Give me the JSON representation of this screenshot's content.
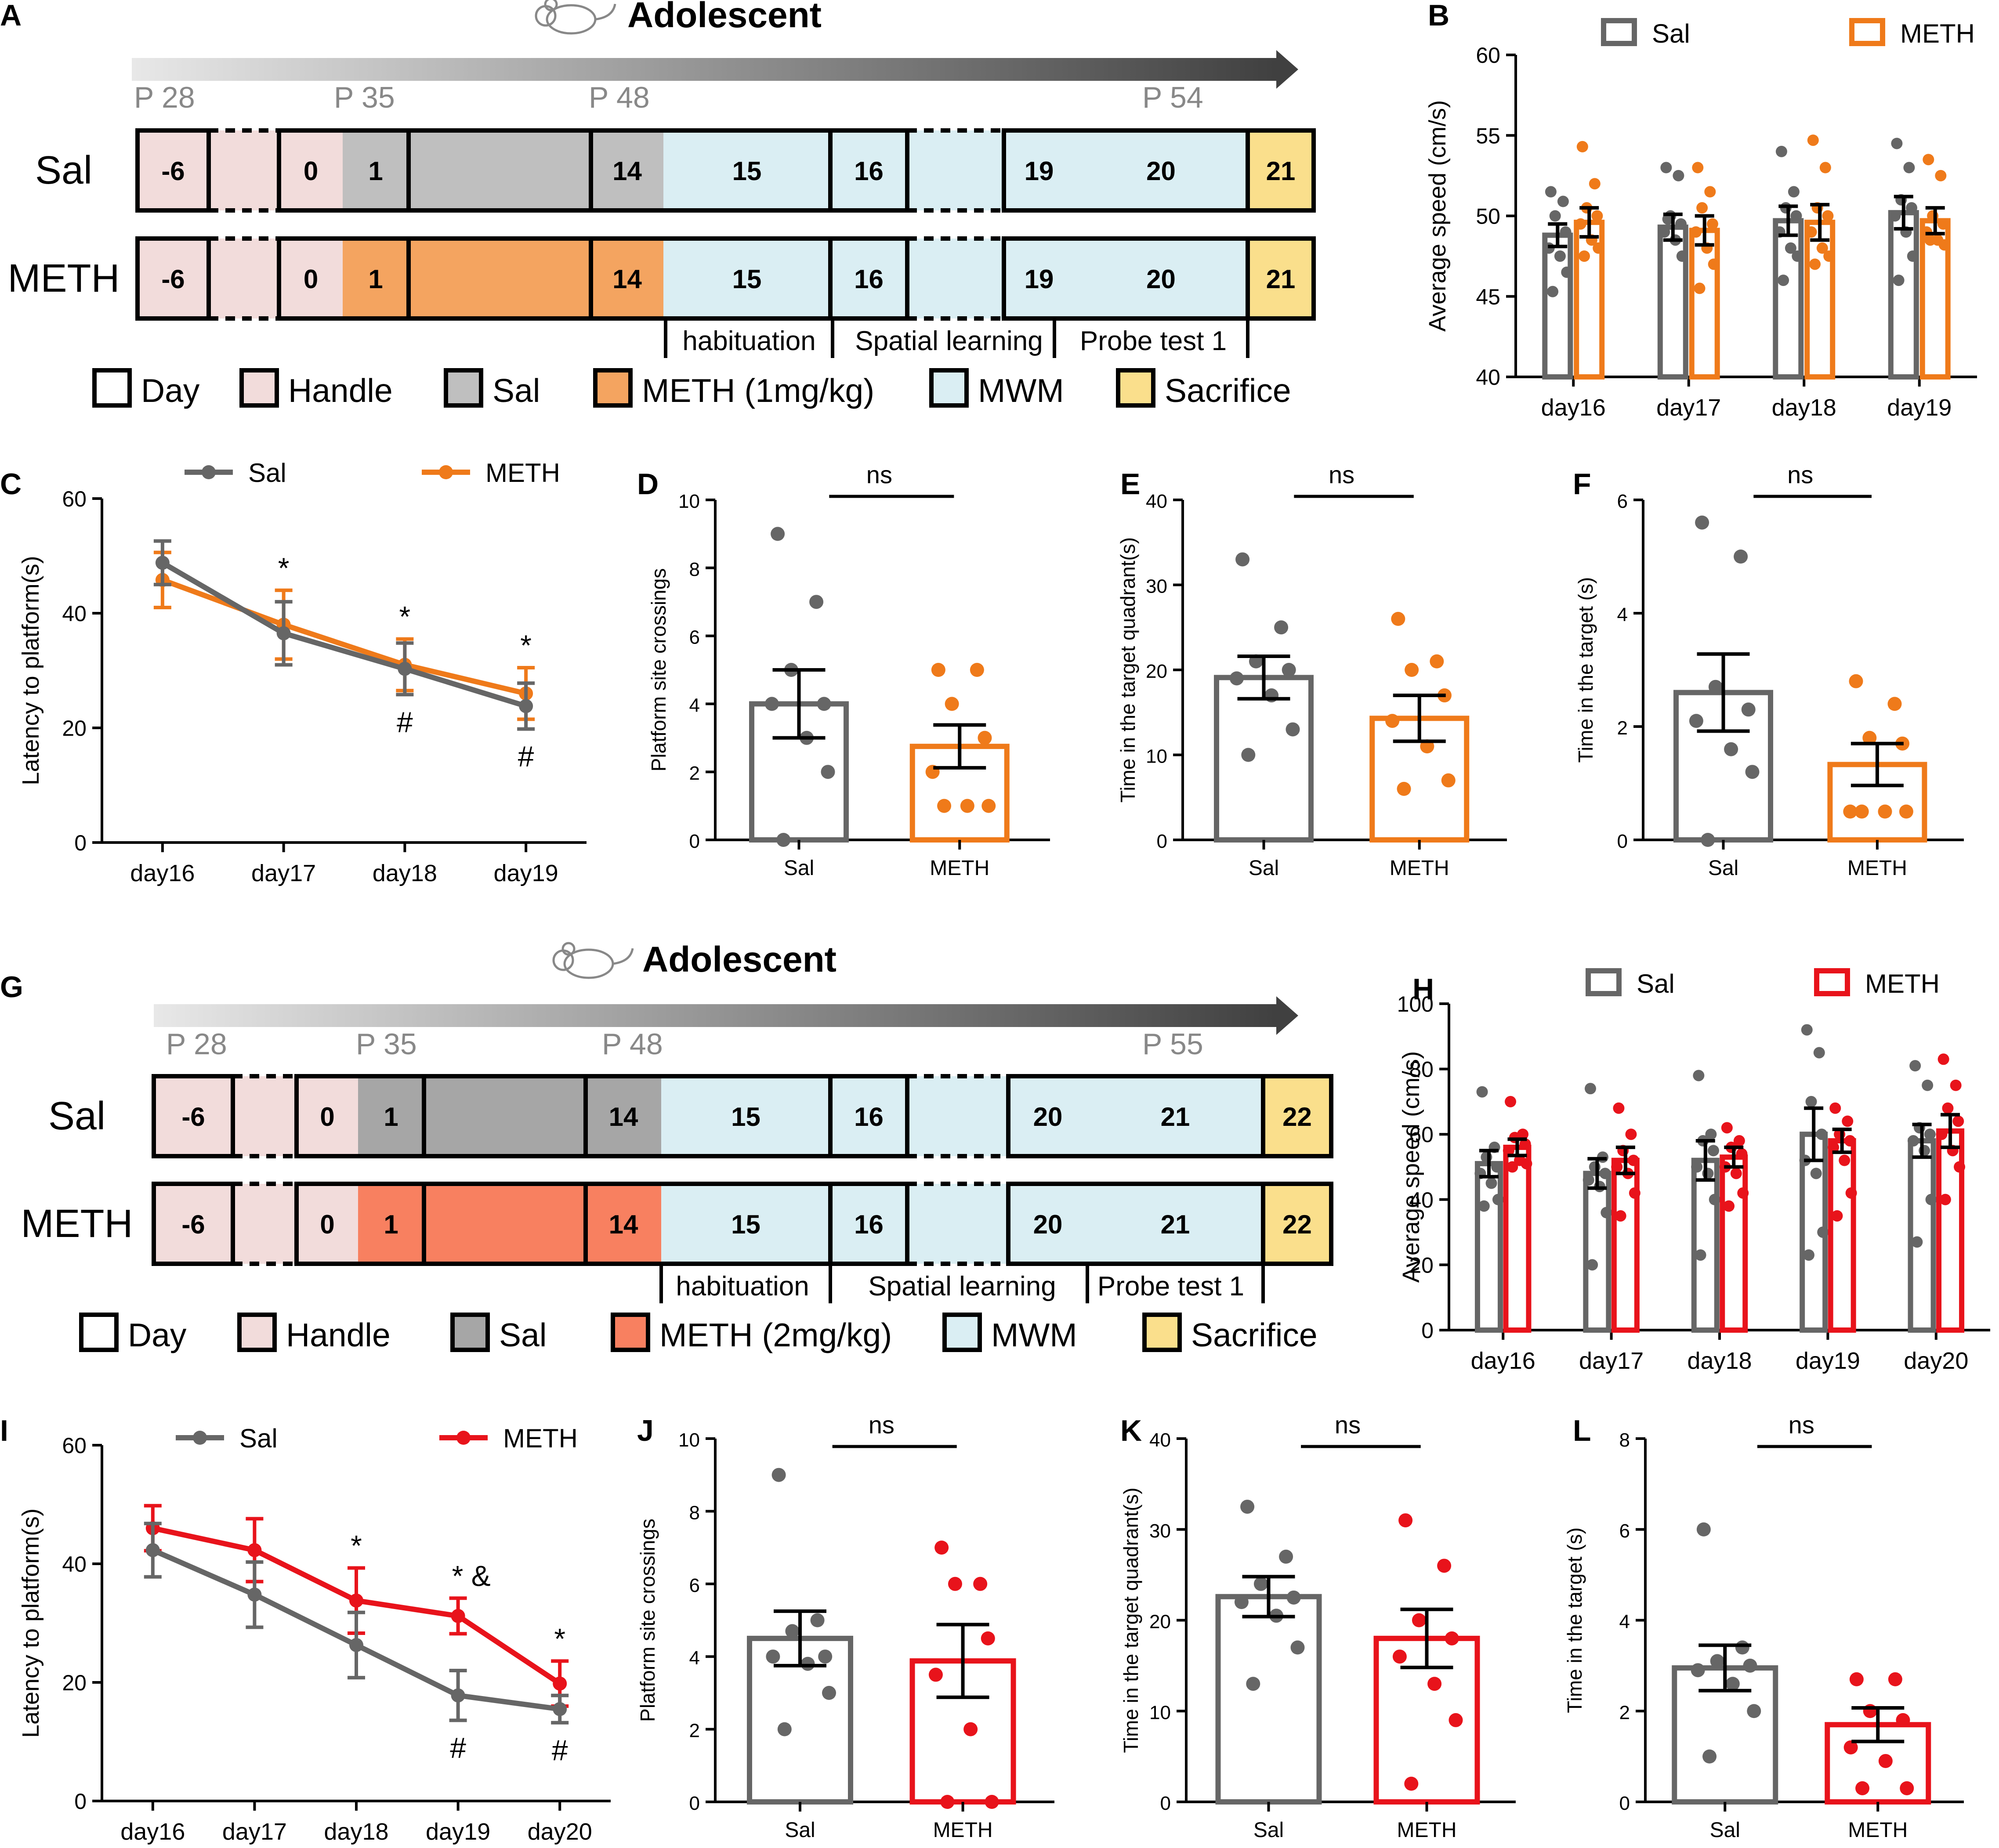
{
  "colors": {
    "sal": "#666666",
    "meth_top": "#EF7A1A",
    "meth_bottom": "#E8131B",
    "handle": "#F2DCDB",
    "sal_box": "#BFBFBF",
    "sal_box2": "#A6A6A6",
    "meth1_box": "#F4A460",
    "meth2_box": "#F88060",
    "mwm": "#DAEEF3",
    "sacrifice": "#FADF8C",
    "white": "#FFFFFF"
  },
  "panel_letters": [
    "A",
    "B",
    "C",
    "D",
    "E",
    "F",
    "G",
    "H",
    "I",
    "J",
    "K",
    "L"
  ],
  "schematic_top": {
    "title": "Adolescent",
    "icon": "mouse-icon",
    "p_labels": [
      "P 28",
      "P 35",
      "P 48",
      "P 54"
    ],
    "row_labels": [
      "Sal",
      "METH"
    ],
    "sal_days": [
      "-6",
      "",
      "0",
      "1",
      "",
      "14",
      "15",
      "16",
      "",
      "19",
      "20",
      "21"
    ],
    "meth_days": [
      "-6",
      "",
      "0",
      "1",
      "",
      "14",
      "15",
      "16",
      "",
      "19",
      "20",
      "21"
    ],
    "phases": [
      "habituation",
      "Spatial learning",
      "Probe test 1"
    ],
    "legend": [
      "Day",
      "Handle",
      "Sal",
      "METH (1mg/kg)",
      "MWM",
      "Sacrifice"
    ]
  },
  "schematic_bottom": {
    "title": "Adolescent",
    "icon": "mouse-icon",
    "p_labels": [
      "P 28",
      "P 35",
      "P 48",
      "P 55"
    ],
    "row_labels": [
      "Sal",
      "METH"
    ],
    "sal_days": [
      "-6",
      "",
      "0",
      "1",
      "",
      "14",
      "15",
      "16",
      "",
      "20",
      "21",
      "22"
    ],
    "meth_days": [
      "-6",
      "",
      "0",
      "1",
      "",
      "14",
      "15",
      "16",
      "",
      "20",
      "21",
      "22"
    ],
    "phases": [
      "habituation",
      "Spatial learning",
      "Probe test 1"
    ],
    "legend": [
      "Day",
      "Handle",
      "Sal",
      "METH (2mg/kg)",
      "MWM",
      "Sacrifice"
    ]
  },
  "chart_data": [
    {
      "panel": "B",
      "type": "bar",
      "title": "",
      "xlabel": "",
      "ylabel": "Average speed (cm/s)",
      "ylim": [
        40,
        60
      ],
      "yticks": [
        "40",
        "45",
        "50",
        "55",
        "60"
      ],
      "legend": [
        "Sal",
        "METH"
      ],
      "legend_position": "top",
      "categories": [
        "day16",
        "day17",
        "day18",
        "day19"
      ],
      "series": [
        {
          "name": "Sal",
          "values": [
            48.8,
            49.3,
            49.7,
            50.2
          ],
          "sem": [
            0.7,
            0.8,
            0.9,
            1.0
          ],
          "points": [
            [
              51.5,
              50.9,
              50.0,
              49.0,
              48.0,
              47.5,
              46.5,
              45.3
            ],
            [
              53.0,
              52.5,
              50.0,
              49.5,
              49.0,
              48.5,
              47.5,
              49.8
            ],
            [
              54.0,
              51.5,
              50.5,
              50.0,
              49.0,
              48.0,
              47.5,
              46.0
            ],
            [
              54.5,
              53.0,
              51.0,
              50.5,
              50.0,
              49.0,
              47.5,
              46.0
            ]
          ]
        },
        {
          "name": "METH",
          "values": [
            49.6,
            49.1,
            49.6,
            49.7
          ],
          "sem": [
            0.9,
            0.9,
            1.1,
            0.8
          ],
          "points": [
            [
              54.3,
              52.0,
              50.5,
              50.0,
              49.5,
              48.5,
              48.0,
              47.5
            ],
            [
              53.0,
              51.5,
              50.5,
              49.5,
              49.0,
              48.0,
              47.0,
              45.5
            ],
            [
              54.7,
              53.0,
              50.5,
              50.0,
              49.0,
              48.0,
              47.5,
              47.0
            ],
            [
              53.5,
              52.5,
              50.0,
              49.5,
              49.0,
              48.5,
              48.2,
              48.5
            ]
          ]
        }
      ]
    },
    {
      "panel": "C",
      "type": "line",
      "xlabel": "",
      "ylabel": "Latency to platform(s)",
      "ylim": [
        0,
        60
      ],
      "yticks": [
        "0",
        "20",
        "40",
        "60"
      ],
      "categories": [
        "day16",
        "day17",
        "day18",
        "day19"
      ],
      "legend": [
        "Sal",
        "METH"
      ],
      "legend_position": "top",
      "series": [
        {
          "name": "Sal",
          "values": [
            48.8,
            36.5,
            30.3,
            23.8
          ],
          "sem": [
            3.8,
            5.5,
            4.5,
            4.0
          ]
        },
        {
          "name": "METH",
          "values": [
            45.8,
            38.0,
            31.0,
            26.0
          ],
          "sem": [
            4.8,
            6.0,
            4.5,
            4.5
          ]
        }
      ],
      "annotations": [
        {
          "category": "day17",
          "text": "*",
          "pos": "above"
        },
        {
          "category": "day18",
          "text": "*",
          "pos": "above"
        },
        {
          "category": "day19",
          "text": "*",
          "pos": "above"
        },
        {
          "category": "day18",
          "text": "#",
          "pos": "below"
        },
        {
          "category": "day19",
          "text": "#",
          "pos": "below"
        }
      ]
    },
    {
      "panel": "D",
      "type": "bar",
      "ylabel": "Platform site crossings",
      "ylim": [
        0,
        10
      ],
      "yticks": [
        "0",
        "2",
        "4",
        "6",
        "8",
        "10"
      ],
      "categories": [
        "Sal",
        "METH"
      ],
      "values": [
        4.0,
        2.75
      ],
      "sem": [
        1.0,
        0.63
      ],
      "points": [
        [
          9,
          7,
          5,
          4,
          4,
          3,
          2,
          0
        ],
        [
          5,
          5,
          4,
          3,
          2,
          1,
          1,
          1
        ]
      ],
      "sig": "ns"
    },
    {
      "panel": "E",
      "type": "bar",
      "ylabel": "Time in the target quadrant(s)",
      "ylim": [
        0,
        40
      ],
      "yticks": [
        "0",
        "10",
        "20",
        "30",
        "40"
      ],
      "categories": [
        "Sal",
        "METH"
      ],
      "values": [
        19.1,
        14.3
      ],
      "sem": [
        2.5,
        2.7
      ],
      "points": [
        [
          33,
          25,
          21,
          20,
          19,
          17,
          13,
          10
        ],
        [
          26,
          21,
          20,
          17,
          14,
          11,
          7,
          6
        ]
      ],
      "sig": "ns"
    },
    {
      "panel": "F",
      "type": "bar",
      "ylabel": "Time in the target (s)",
      "ylim": [
        0,
        6
      ],
      "yticks": [
        "0",
        "2",
        "4",
        "6"
      ],
      "categories": [
        "Sal",
        "METH"
      ],
      "values": [
        2.6,
        1.33
      ],
      "sem": [
        0.68,
        0.37
      ],
      "points": [
        [
          5.6,
          5.0,
          2.7,
          2.3,
          2.1,
          1.6,
          1.2,
          0
        ],
        [
          2.8,
          2.4,
          1.8,
          1.7,
          0.5,
          0.5,
          0.5,
          0.5
        ]
      ],
      "sig": "ns"
    },
    {
      "panel": "H",
      "type": "bar",
      "ylabel": "Average speed (cm/s)",
      "ylim": [
        0,
        100
      ],
      "yticks": [
        "0",
        "20",
        "40",
        "60",
        "80",
        "100"
      ],
      "legend": [
        "Sal",
        "METH"
      ],
      "legend_position": "top",
      "categories": [
        "day16",
        "day17",
        "day18",
        "day19",
        "day20"
      ],
      "series": [
        {
          "name": "Sal",
          "values": [
            51,
            48,
            52,
            60,
            58
          ],
          "sem": [
            4,
            4.5,
            6,
            8,
            5
          ],
          "points": [
            [
              73,
              56,
              53,
              50,
              48,
              45,
              40,
              38
            ],
            [
              74,
              53,
              50,
              48,
              46,
              44,
              36,
              20
            ],
            [
              78,
              60,
              58,
              55,
              50,
              48,
              40,
              23
            ],
            [
              92,
              85,
              70,
              60,
              52,
              48,
              30,
              23
            ],
            [
              81,
              75,
              62,
              60,
              58,
              55,
              40,
              27
            ]
          ]
        },
        {
          "name": "METH",
          "values": [
            56,
            52,
            53,
            58,
            61
          ],
          "sem": [
            2.5,
            4,
            3,
            3.5,
            5
          ],
          "points": [
            [
              70,
              60,
              59,
              57,
              55,
              52,
              51,
              50
            ],
            [
              68,
              60,
              55,
              52,
              50,
              48,
              42,
              35
            ],
            [
              62,
              58,
              56,
              54,
              50,
              48,
              42,
              38
            ],
            [
              68,
              64,
              60,
              58,
              56,
              52,
              42,
              35
            ],
            [
              83,
              75,
              68,
              64,
              60,
              55,
              50,
              40
            ]
          ]
        }
      ]
    },
    {
      "panel": "I",
      "type": "line",
      "ylabel": "Latency to platform(s)",
      "ylim": [
        0,
        60
      ],
      "yticks": [
        "0",
        "20",
        "40",
        "60"
      ],
      "categories": [
        "day16",
        "day17",
        "day18",
        "day19",
        "day20"
      ],
      "legend": [
        "Sal",
        "METH"
      ],
      "legend_position": "top",
      "series": [
        {
          "name": "Sal",
          "values": [
            42.3,
            34.8,
            26.3,
            17.8,
            15.5
          ],
          "sem": [
            4.5,
            5.5,
            5.5,
            4.2,
            2.3
          ]
        },
        {
          "name": "METH",
          "values": [
            46.0,
            42.3,
            33.8,
            31.2,
            19.8
          ],
          "sem": [
            3.8,
            5.3,
            5.5,
            3.0,
            3.8
          ]
        }
      ],
      "annotations": [
        {
          "category": "day18",
          "text": "*",
          "pos": "above"
        },
        {
          "category": "day19",
          "text": "*  &",
          "pos": "above"
        },
        {
          "category": "day20",
          "text": "*",
          "pos": "above"
        },
        {
          "category": "day19",
          "text": "#",
          "pos": "below"
        },
        {
          "category": "day20",
          "text": "#",
          "pos": "below"
        }
      ]
    },
    {
      "panel": "J",
      "type": "bar",
      "ylabel": "Platform site crossings",
      "ylim": [
        0,
        10
      ],
      "yticks": [
        "0",
        "2",
        "4",
        "6",
        "8",
        "10"
      ],
      "categories": [
        "Sal",
        "METH"
      ],
      "values": [
        4.5,
        3.88
      ],
      "sem": [
        0.75,
        1.0
      ],
      "points": [
        [
          9,
          5,
          4.7,
          4,
          4,
          3.8,
          3,
          2
        ],
        [
          7,
          6,
          6,
          4.5,
          3.5,
          2,
          0,
          0
        ]
      ],
      "sig": "ns"
    },
    {
      "panel": "K",
      "type": "bar",
      "ylabel": "Time in the target quadrant(s)",
      "ylim": [
        0,
        40
      ],
      "yticks": [
        "0",
        "10",
        "20",
        "30",
        "40"
      ],
      "categories": [
        "Sal",
        "METH"
      ],
      "values": [
        22.6,
        18.0
      ],
      "sem": [
        2.2,
        3.2
      ],
      "points": [
        [
          32.5,
          27,
          24,
          22.5,
          22,
          20.5,
          17,
          13
        ],
        [
          31,
          26,
          20,
          18,
          16,
          13,
          9,
          2
        ]
      ],
      "sig": "ns"
    },
    {
      "panel": "L",
      "type": "bar",
      "ylabel": "Time in the target (s)",
      "ylim": [
        0,
        8
      ],
      "yticks": [
        "0",
        "2",
        "4",
        "6",
        "8"
      ],
      "categories": [
        "Sal",
        "METH"
      ],
      "values": [
        2.95,
        1.7
      ],
      "sem": [
        0.5,
        0.37
      ],
      "points": [
        [
          6,
          3.4,
          3.1,
          3.0,
          2.9,
          2.6,
          2.0,
          1.0
        ],
        [
          2.7,
          2.7,
          2.0,
          1.8,
          1.2,
          0.9,
          0.3,
          0.3
        ]
      ],
      "sig": "ns"
    }
  ]
}
